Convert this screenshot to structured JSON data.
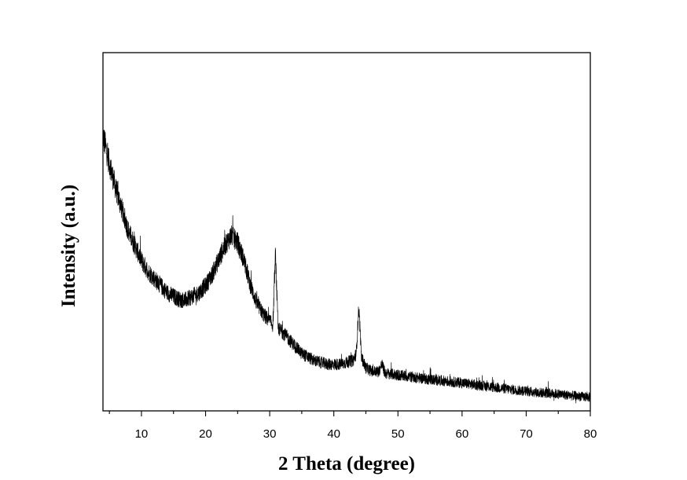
{
  "chart_data": {
    "type": "line",
    "xlabel": "2 Theta (degree)",
    "ylabel": "Intensity (a.u.)",
    "xlim": [
      4,
      80
    ],
    "ylim": [
      0,
      100
    ],
    "y_ticks_shown": false,
    "grid": false,
    "legend": "none",
    "x_ticks": [
      10,
      20,
      30,
      40,
      50,
      60,
      70,
      80
    ],
    "x_tick_labels": [
      "10",
      "20",
      "30",
      "40",
      "50",
      "60",
      "70",
      "80"
    ],
    "series": [
      {
        "color": "#000000",
        "x": [
          4,
          5,
          6,
          7,
          8,
          9,
          10,
          11,
          12,
          13,
          14,
          15,
          16,
          17,
          18,
          19,
          20,
          21,
          22,
          23,
          24,
          25,
          26,
          27,
          28,
          29,
          30,
          30.5,
          30.9,
          31.3,
          32,
          33,
          34,
          35,
          36,
          37,
          38,
          39,
          40,
          41,
          42,
          43,
          43.5,
          43.9,
          44.3,
          45,
          46,
          47,
          47.5,
          48,
          50,
          52,
          55,
          58,
          60,
          62,
          65,
          68,
          70,
          72,
          75,
          78,
          80
        ],
        "y": [
          77,
          69,
          62,
          56,
          50,
          46,
          42,
          39,
          37,
          35,
          33,
          32,
          31,
          31,
          32,
          33,
          35,
          38,
          42,
          46,
          49,
          47,
          42,
          35,
          30,
          27,
          25,
          24,
          44,
          23,
          22,
          20,
          18,
          16,
          15,
          14,
          13.5,
          13,
          13,
          13,
          13.5,
          14,
          16,
          29,
          15,
          12,
          11,
          11,
          13,
          10.5,
          10,
          9.5,
          8.8,
          8.2,
          7.8,
          7.3,
          6.6,
          5.9,
          5.5,
          5.1,
          4.7,
          4.1,
          3.8
        ]
      }
    ]
  }
}
